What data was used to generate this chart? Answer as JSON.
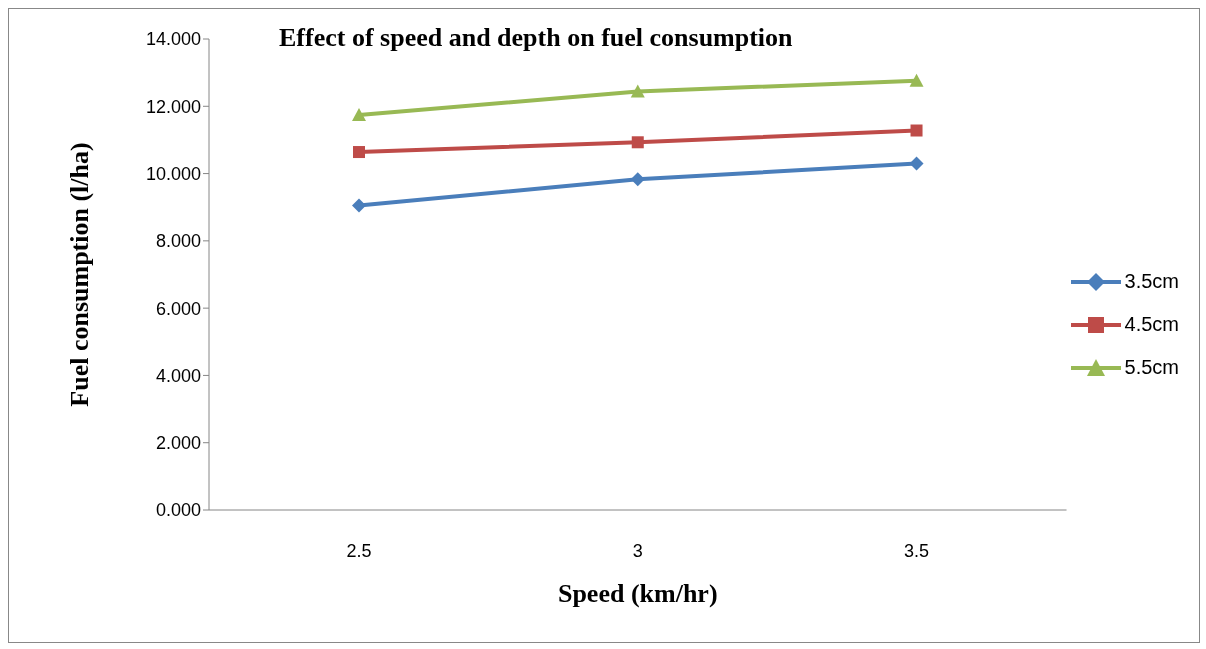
{
  "chart_data": {
    "type": "line",
    "title": "Effect of speed and depth on fuel consumption",
    "xlabel": "Speed (km/hr)",
    "ylabel": "Fuel consumption (l/ha)",
    "categories": [
      "2.5",
      "3",
      "3.5"
    ],
    "series": [
      {
        "name": "3.5cm",
        "color": "#4a7ebb",
        "marker": "diamond",
        "values": [
          9.05,
          9.83,
          10.3
        ]
      },
      {
        "name": "4.5cm",
        "color": "#be4b48",
        "marker": "square",
        "values": [
          10.64,
          10.93,
          11.28
        ]
      },
      {
        "name": "5.5cm",
        "color": "#98b954",
        "marker": "triangle",
        "values": [
          11.74,
          12.44,
          12.76
        ]
      }
    ],
    "ylim": [
      0,
      14
    ],
    "yticks": [
      {
        "value": 0,
        "label": "0.000"
      },
      {
        "value": 2,
        "label": "2.000"
      },
      {
        "value": 4,
        "label": "4.000"
      },
      {
        "value": 6,
        "label": "6.000"
      },
      {
        "value": 8,
        "label": "8.000"
      },
      {
        "value": 10,
        "label": "10.000"
      },
      {
        "value": 12,
        "label": "12.000"
      },
      {
        "value": 14,
        "label": "14.000"
      }
    ],
    "grid": false,
    "legend": "right",
    "line_style": "solid"
  }
}
